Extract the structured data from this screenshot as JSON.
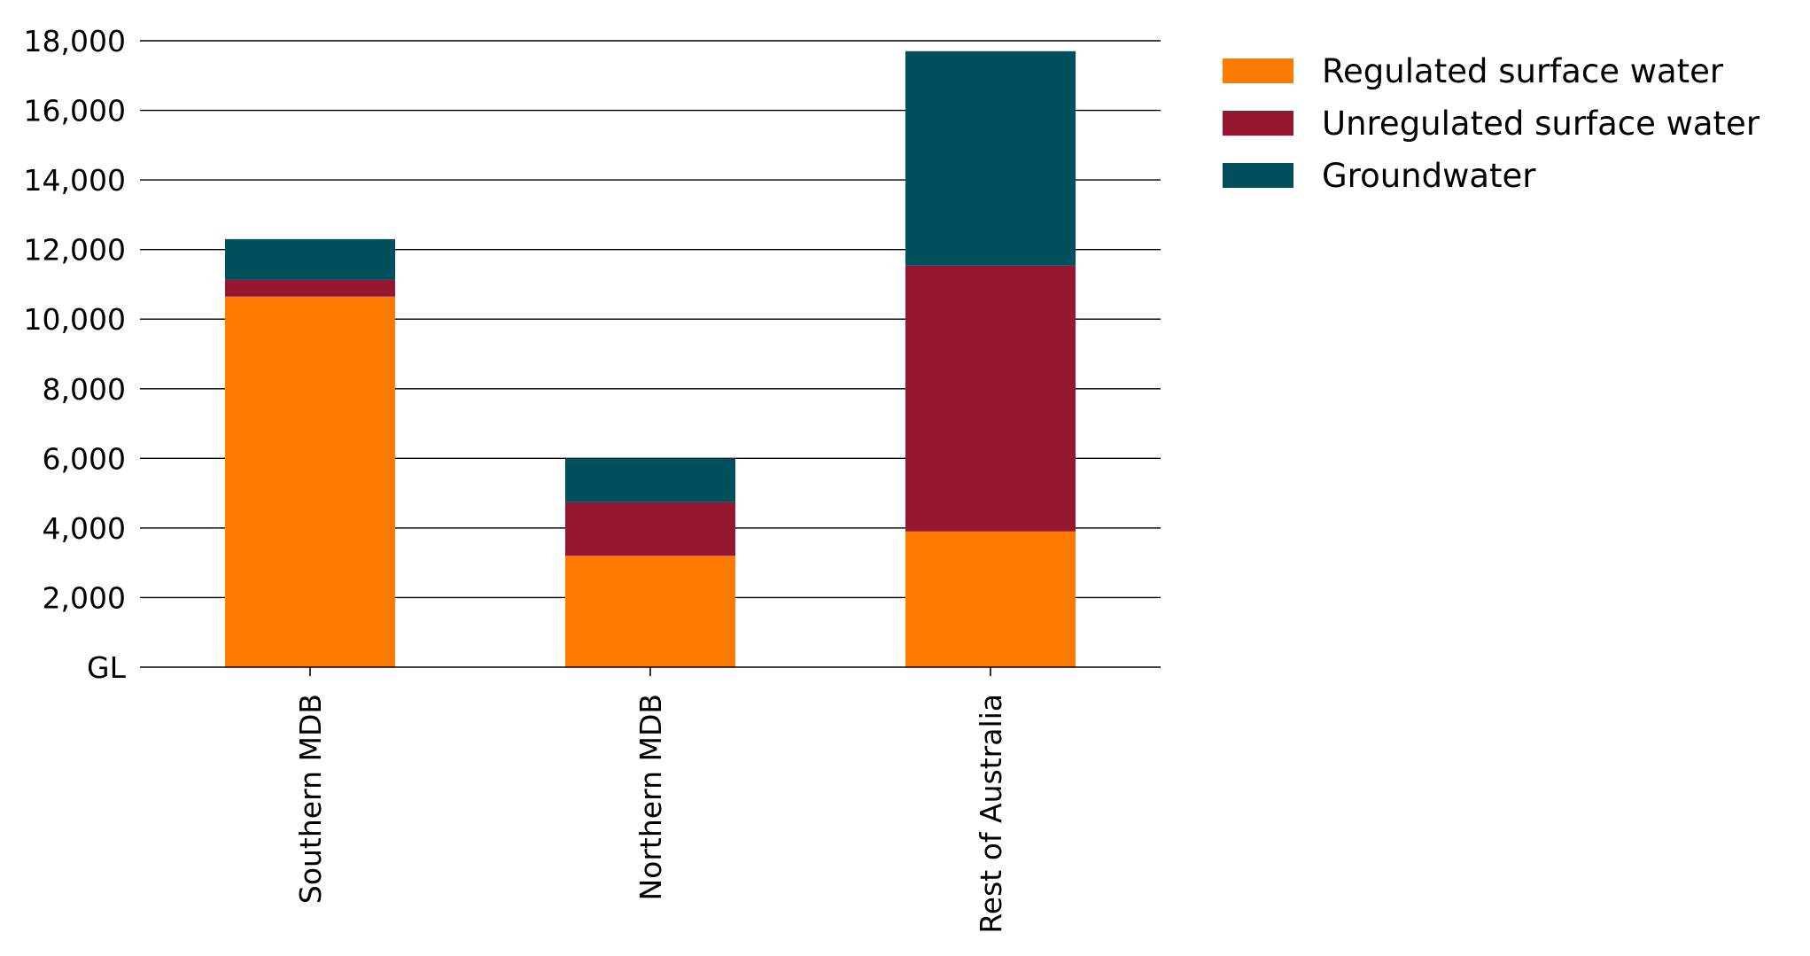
{
  "chart_data": {
    "type": "bar",
    "stacked": true,
    "orientation": "vertical",
    "categories": [
      "Southern MDB",
      "Northern MDB",
      "Rest of Australia"
    ],
    "series": [
      {
        "name": "Regulated surface water",
        "color": "#FF7B00",
        "values": [
          10650,
          3200,
          3900
        ]
      },
      {
        "name": "Unregulated surface water",
        "color": "#951830",
        "values": [
          500,
          1550,
          7650
        ]
      },
      {
        "name": "Groundwater",
        "color": "#004F5C",
        "values": [
          1150,
          1250,
          6150
        ]
      }
    ],
    "title": "",
    "xlabel": "",
    "ylabel": "",
    "ylim": [
      0,
      18000
    ],
    "y_ticks": [
      0,
      2000,
      4000,
      6000,
      8000,
      10000,
      12000,
      14000,
      16000,
      18000
    ],
    "y_tick_labels": [
      "GL",
      "2,000",
      "4,000",
      "6,000",
      "8,000",
      "10,000",
      "12,000",
      "14,000",
      "16,000",
      "18,000"
    ],
    "category_label_rotation": "vertical",
    "grid": true,
    "legend": {
      "position": "top-right",
      "entries": [
        "Regulated surface water",
        "Unregulated surface water",
        "Groundwater"
      ]
    }
  }
}
